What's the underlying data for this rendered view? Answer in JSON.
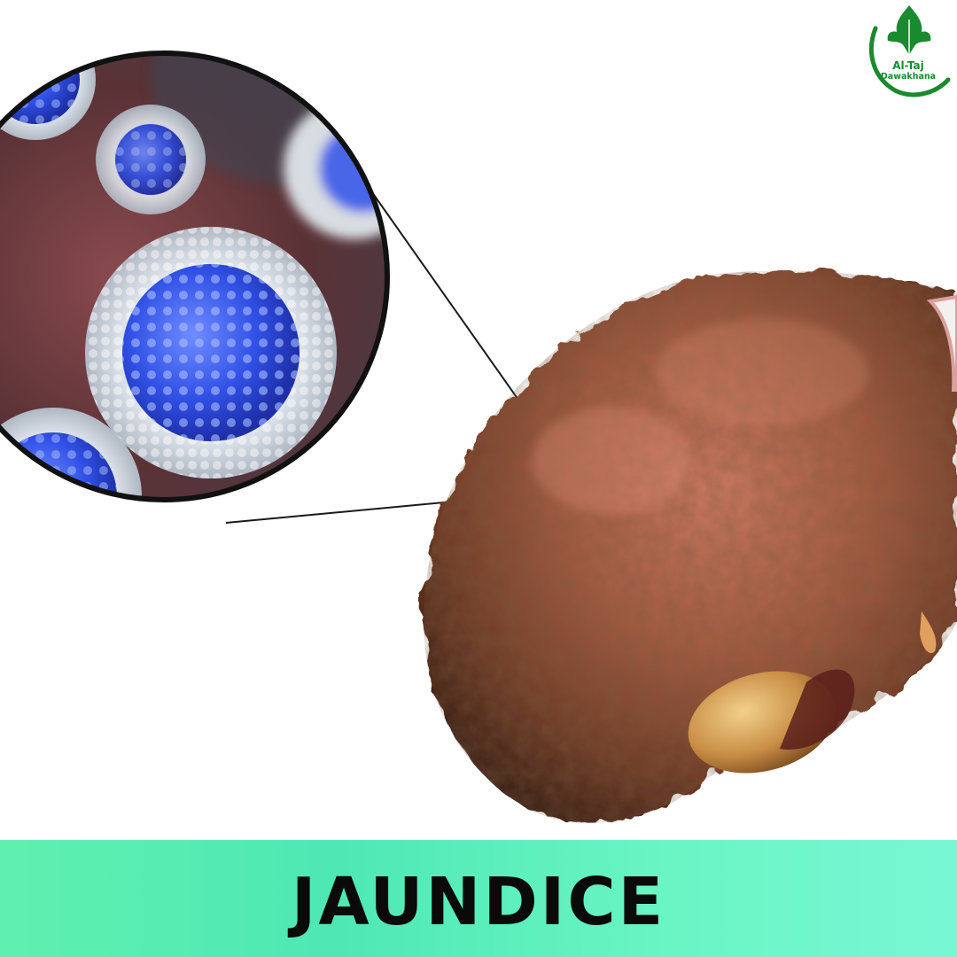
{
  "brand": {
    "name_line1": "Al-Taj",
    "name_line2": "Dawakhana",
    "color": "#1a8a2e"
  },
  "banner": {
    "title": "JAUNDICE",
    "gradient_start": "#5ff0b0",
    "gradient_end": "#78f7d4"
  },
  "illustration": {
    "subject": "liver",
    "inset": "virus-magnification",
    "colors": {
      "liver": "#8f4a36",
      "virus_core": "#3a5cf0",
      "inset_bg": "#6a3c3c"
    }
  }
}
